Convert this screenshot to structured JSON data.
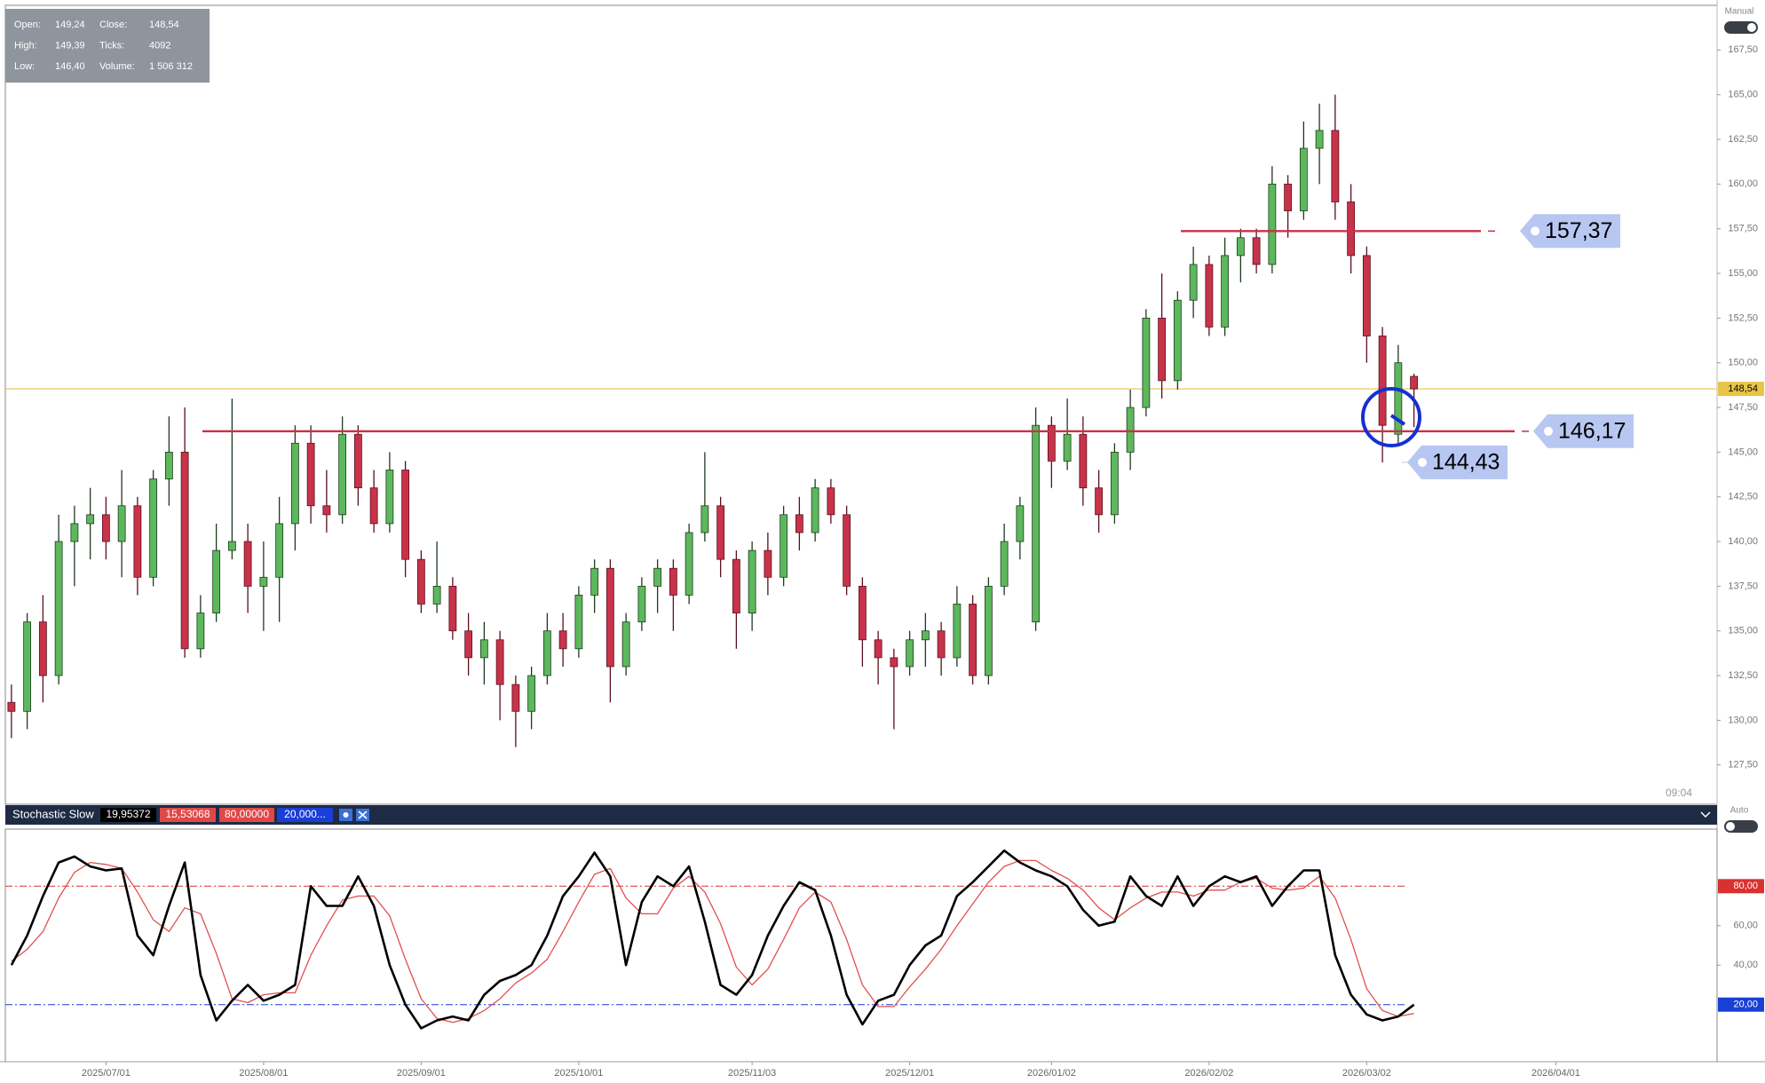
{
  "info_box": {
    "rows": [
      [
        "Open:",
        "149,24",
        "Close:",
        "148,54"
      ],
      [
        "High:",
        "149,39",
        "Ticks:",
        "4092"
      ],
      [
        "Low:",
        "146,40",
        "Volume:",
        "1 506 312"
      ]
    ]
  },
  "mode_labels": {
    "price": "Manual",
    "indicator": "Auto"
  },
  "time_label": "09:04",
  "chart_data": [
    {
      "type": "candlestick",
      "categories": [
        null,
        null,
        null,
        null,
        null,
        null,
        "2025/07/01",
        null,
        null,
        null,
        null,
        null,
        null,
        null,
        null,
        null,
        "2025/08/01",
        null,
        null,
        null,
        null,
        null,
        null,
        null,
        null,
        null,
        "2025/09/01",
        null,
        null,
        null,
        null,
        null,
        null,
        null,
        null,
        null,
        "2025/10/01",
        null,
        null,
        null,
        null,
        null,
        null,
        null,
        null,
        null,
        null,
        "2025/11/03",
        null,
        null,
        null,
        null,
        null,
        null,
        null,
        null,
        null,
        "2025/12/01",
        null,
        null,
        null,
        null,
        null,
        null,
        null,
        null,
        "2026/01/02",
        null,
        null,
        null,
        null,
        null,
        null,
        null,
        null,
        null,
        "2026/02/02",
        null,
        null,
        null,
        null,
        null,
        null,
        null,
        null,
        null,
        "2026/03/02",
        null,
        null,
        null,
        null,
        null,
        null,
        null,
        null,
        null,
        null,
        null,
        "2026/04/01",
        null,
        null,
        null,
        null,
        null,
        null,
        null
      ],
      "open": [
        131,
        130.5,
        135.5,
        132.5,
        140,
        141,
        141.5,
        140,
        142,
        138,
        143.5,
        145,
        134,
        136,
        139.5,
        140,
        137.5,
        138,
        141,
        145.5,
        142,
        141.5,
        146,
        143,
        141,
        144,
        139,
        136.5,
        137.5,
        135,
        133.5,
        134.5,
        132,
        130.5,
        132.5,
        135,
        134,
        137,
        138.5,
        133,
        135.5,
        137.5,
        138.5,
        137,
        140.5,
        142,
        139,
        136,
        139.5,
        138,
        141.5,
        140.5,
        143,
        141.5,
        137.5,
        134.5,
        133.5,
        133,
        134.5,
        135,
        133.5,
        136.5,
        132.5,
        137.5,
        140,
        135.5,
        146.5,
        144.5,
        146,
        143,
        141.5,
        145,
        147.5,
        152.5,
        149,
        153.5,
        155.5,
        152,
        156,
        157,
        155.5,
        160,
        158.5,
        162,
        163,
        159,
        156,
        151.5,
        146,
        149.24,
        null,
        null,
        null,
        null,
        null,
        null,
        null,
        null,
        null,
        null,
        null,
        null,
        null,
        null,
        null,
        null
      ],
      "high": [
        132,
        136,
        137,
        141.5,
        142,
        143,
        142.5,
        144,
        142.5,
        144,
        147,
        147.5,
        137,
        141,
        148,
        141,
        140,
        142.5,
        146.5,
        146.5,
        144,
        147,
        146.5,
        144,
        145,
        144.5,
        139.5,
        140,
        138,
        136,
        135.5,
        135,
        132.5,
        133,
        136,
        136,
        137.5,
        139,
        139,
        136,
        138,
        139,
        139,
        141,
        145,
        142.5,
        139.5,
        140,
        140.5,
        142,
        142.5,
        143.5,
        143.5,
        142,
        138,
        135,
        134,
        135,
        136,
        135.5,
        137.5,
        137,
        138,
        141,
        142.5,
        147.5,
        147,
        148,
        147,
        144,
        145.5,
        148.5,
        153,
        155,
        154,
        156.5,
        156,
        157,
        157.5,
        157.5,
        161,
        160.5,
        163.5,
        164.5,
        165,
        160,
        156.5,
        152,
        151,
        149.39,
        null,
        null,
        null,
        null,
        null,
        null,
        null,
        null,
        null,
        null,
        null,
        null,
        null,
        null,
        null,
        null
      ],
      "low": [
        129,
        129.5,
        131,
        132,
        137.5,
        139,
        139,
        138,
        137,
        137.5,
        142,
        133.5,
        133.5,
        135.5,
        139,
        136,
        135,
        135.5,
        139.5,
        141,
        140.5,
        141,
        142,
        140.5,
        140.5,
        138,
        136,
        136,
        134.5,
        132.5,
        132,
        130,
        128.5,
        129.5,
        132,
        133,
        133.5,
        136,
        131,
        132.5,
        135,
        136,
        135,
        136.5,
        140,
        138,
        134,
        135,
        137,
        137.5,
        139.5,
        140,
        141,
        137,
        133,
        132,
        129.5,
        132.5,
        133,
        132.5,
        133,
        132,
        132,
        137,
        139,
        135,
        143,
        144,
        142,
        140.5,
        141,
        144,
        147,
        148,
        148.5,
        152.5,
        151.5,
        151.5,
        154.5,
        155,
        155,
        157,
        158,
        160,
        158,
        155,
        150,
        144.43,
        145.5,
        146.4,
        null,
        null,
        null,
        null,
        null,
        null,
        null,
        null,
        null,
        null,
        null,
        null,
        null,
        null,
        null,
        null
      ],
      "close": [
        130.5,
        135.5,
        132.5,
        140,
        141,
        141.5,
        140,
        142,
        138,
        143.5,
        145,
        134,
        136,
        139.5,
        140,
        137.5,
        138,
        141,
        145.5,
        142,
        141.5,
        146,
        143,
        141,
        144,
        139,
        136.5,
        137.5,
        135,
        133.5,
        134.5,
        132,
        130.5,
        132.5,
        135,
        134,
        137,
        138.5,
        133,
        135.5,
        137.5,
        138.5,
        137,
        140.5,
        142,
        139,
        136,
        139.5,
        138,
        141.5,
        140.5,
        143,
        141.5,
        137.5,
        134.5,
        133.5,
        133,
        134.5,
        135,
        133.5,
        136.5,
        132.5,
        137.5,
        140,
        142,
        146.5,
        144.5,
        146,
        143,
        141.5,
        145,
        147.5,
        152.5,
        149,
        153.5,
        155.5,
        152,
        156,
        157,
        155.5,
        160,
        158.5,
        162,
        163,
        159,
        156,
        151.5,
        146.5,
        150,
        148.54,
        null,
        null,
        null,
        null,
        null,
        null,
        null,
        null,
        null,
        null,
        null,
        null,
        null,
        null,
        null,
        null
      ],
      "up_color": "#5cb85c",
      "down_color": "#c8334a",
      "ylim": [
        125.3,
        170
      ],
      "yticks": [
        {
          "value": 127.5,
          "label": "127,50"
        },
        {
          "value": 130,
          "label": "130,00"
        },
        {
          "value": 132.5,
          "label": "132,50"
        },
        {
          "value": 135,
          "label": "135,00"
        },
        {
          "value": 137.5,
          "label": "137,50"
        },
        {
          "value": 140,
          "label": "140,00"
        },
        {
          "value": 142.5,
          "label": "142,50"
        },
        {
          "value": 145,
          "label": "145,00"
        },
        {
          "value": 147.5,
          "label": "147,50"
        },
        {
          "value": 150,
          "label": "150,00"
        },
        {
          "value": 152.5,
          "label": "152,50"
        },
        {
          "value": 155,
          "label": "155,00"
        },
        {
          "value": 157.5,
          "label": "157,50"
        },
        {
          "value": 160,
          "label": "160,00"
        },
        {
          "value": 162.5,
          "label": "162,50"
        },
        {
          "value": 165,
          "label": "165,00"
        },
        {
          "value": 167.5,
          "label": "167,50"
        }
      ],
      "last_price": {
        "value": 148.54,
        "label": "148,54",
        "color": "#e8c547"
      },
      "levels": [
        {
          "value": 157.37,
          "label": "157,37",
          "color": "#c8334a"
        },
        {
          "value": 146.17,
          "label": "146,17",
          "color": "#c8334a"
        },
        {
          "value": 144.43,
          "label": "144,43"
        }
      ]
    },
    {
      "type": "line",
      "title": "Stochastic Slow",
      "series": [
        {
          "color": "#000000",
          "header_label": "19,95372",
          "values": [
            40,
            55,
            75,
            92,
            95,
            90,
            88,
            89,
            55,
            45,
            70,
            92,
            35,
            12,
            22,
            30,
            22,
            25,
            30,
            80,
            70,
            70,
            85,
            70,
            40,
            20,
            8,
            12,
            14,
            12,
            25,
            32,
            35,
            40,
            55,
            75,
            85,
            97,
            85,
            40,
            72,
            85,
            80,
            90,
            62,
            30,
            25,
            35,
            55,
            70,
            82,
            78,
            55,
            25,
            10,
            22,
            25,
            40,
            50,
            55,
            75,
            82,
            90,
            98,
            92,
            88,
            85,
            80,
            68,
            60,
            62,
            85,
            75,
            70,
            85,
            70,
            80,
            85,
            82,
            85,
            70,
            80,
            88,
            88,
            45,
            25,
            15,
            12,
            14,
            19.95372,
            null,
            null,
            null,
            null,
            null,
            null,
            null,
            null,
            null,
            null,
            null,
            null,
            null,
            null,
            null,
            null
          ]
        },
        {
          "color": "#e05050",
          "header_label": "15,53068",
          "values": [
            42,
            48,
            57,
            74,
            87,
            92,
            91,
            89,
            77,
            63,
            57,
            69,
            66,
            46,
            23,
            21,
            25,
            26,
            26,
            45,
            60,
            73,
            75,
            75,
            65,
            43,
            23,
            13,
            11,
            13,
            17,
            23,
            31,
            36,
            43,
            57,
            72,
            86,
            89,
            74,
            66,
            66,
            79,
            85,
            77,
            61,
            39,
            30,
            38,
            53,
            69,
            77,
            72,
            53,
            30,
            19,
            19,
            29,
            38,
            48,
            60,
            71,
            82,
            90,
            93,
            93,
            88,
            84,
            78,
            69,
            63,
            69,
            74,
            77,
            77,
            75,
            78,
            78,
            82,
            84,
            79,
            78,
            79,
            85,
            74,
            53,
            28,
            17,
            14,
            15.53068,
            null,
            null,
            null,
            null,
            null,
            null,
            null,
            null,
            null,
            null,
            null,
            null,
            null,
            null,
            null,
            null
          ]
        }
      ],
      "ylim": [
        -8,
        108
      ],
      "yticks": [
        {
          "value": 40,
          "label": "40,00"
        },
        {
          "value": 60,
          "label": "60,00"
        }
      ],
      "levels": [
        {
          "value": 80,
          "label": "80,00000",
          "axis_label": "80,00",
          "color": "#d93030"
        },
        {
          "value": 20,
          "label": "20,000...",
          "axis_label": "20,00",
          "color": "#1a3fd6"
        }
      ]
    }
  ]
}
